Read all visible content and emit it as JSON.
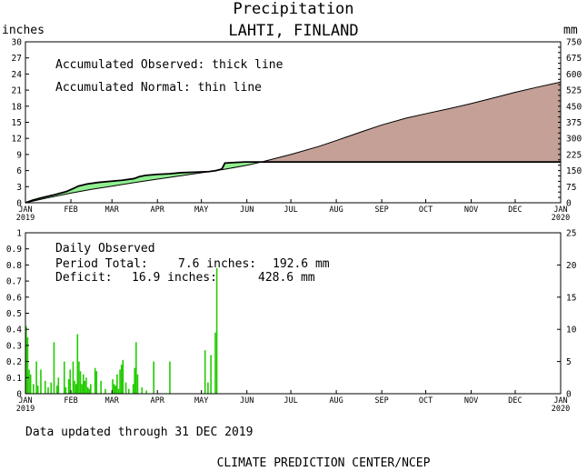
{
  "header": {
    "title": "Precipitation",
    "location": "LAHTI, FINLAND",
    "left_unit": "inches",
    "right_unit": "mm"
  },
  "top_panel": {
    "legend": [
      "Accumulated Observed: thick line",
      "Accumulated Normal: thin line"
    ]
  },
  "bottom_panel": {
    "legend_title": "Daily Observed",
    "total_label": "Period Total:",
    "total_inches": "7.6 inches:",
    "total_mm": "192.6 mm",
    "deficit_label": "Deficit:",
    "deficit_inches": "16.9 inches:",
    "deficit_mm": "428.6 mm"
  },
  "footer": {
    "updated": "Data updated through 31 DEC 2019",
    "source": "CLIMATE PREDICTION CENTER/NCEP"
  },
  "colors": {
    "surplus": "#90ee90",
    "deficit": "#c4a096",
    "bars": "#22cc00",
    "line": "#000000"
  },
  "chart_data": [
    {
      "type": "area",
      "x_unit": "day of year",
      "x_ticks": [
        {
          "label": "JAN",
          "sub": "2019",
          "day": 0
        },
        {
          "label": "FEB",
          "day": 31
        },
        {
          "label": "MAR",
          "day": 59
        },
        {
          "label": "APR",
          "day": 90
        },
        {
          "label": "MAY",
          "day": 120
        },
        {
          "label": "JUN",
          "day": 151
        },
        {
          "label": "JUL",
          "day": 181
        },
        {
          "label": "AUG",
          "day": 212
        },
        {
          "label": "SEP",
          "day": 243
        },
        {
          "label": "OCT",
          "day": 273
        },
        {
          "label": "NOV",
          "day": 304
        },
        {
          "label": "DEC",
          "day": 334
        },
        {
          "label": "JAN",
          "sub": "2020",
          "day": 365
        }
      ],
      "ylim": [
        0,
        30
      ],
      "yticks": [
        0,
        3,
        6,
        9,
        12,
        15,
        18,
        21,
        24,
        27,
        30
      ],
      "y2lim": [
        0,
        750
      ],
      "y2ticks": [
        0,
        25,
        50,
        75,
        100,
        125,
        150,
        175,
        200,
        225,
        250,
        275,
        300,
        325,
        350,
        375,
        400,
        425,
        450,
        475,
        500,
        525,
        550,
        575,
        600,
        625,
        650,
        675,
        700,
        725,
        750
      ],
      "y2tick_labels": [
        0,
        75,
        150,
        225,
        300,
        375,
        450,
        525,
        600,
        675,
        750
      ],
      "series": [
        {
          "name": "Accumulated Observed",
          "points": [
            [
              0,
              0
            ],
            [
              5,
              0.5
            ],
            [
              12,
              1.0
            ],
            [
              20,
              1.5
            ],
            [
              28,
              2.1
            ],
            [
              33,
              2.7
            ],
            [
              36,
              3.1
            ],
            [
              42,
              3.5
            ],
            [
              50,
              3.8
            ],
            [
              58,
              4.0
            ],
            [
              66,
              4.2
            ],
            [
              74,
              4.5
            ],
            [
              78,
              4.9
            ],
            [
              82,
              5.1
            ],
            [
              90,
              5.3
            ],
            [
              98,
              5.4
            ],
            [
              106,
              5.6
            ],
            [
              115,
              5.7
            ],
            [
              125,
              5.8
            ],
            [
              130,
              6.0
            ],
            [
              134,
              6.3
            ],
            [
              136,
              7.4
            ],
            [
              142,
              7.5
            ],
            [
              150,
              7.6
            ],
            [
              160,
              7.6
            ],
            [
              170,
              7.6
            ],
            [
              200,
              7.6
            ],
            [
              250,
              7.6
            ],
            [
              300,
              7.6
            ],
            [
              365,
              7.6
            ]
          ]
        },
        {
          "name": "Accumulated Normal",
          "points": [
            [
              0,
              0
            ],
            [
              15,
              0.9
            ],
            [
              31,
              1.8
            ],
            [
              45,
              2.5
            ],
            [
              59,
              3.1
            ],
            [
              75,
              3.8
            ],
            [
              90,
              4.4
            ],
            [
              105,
              5.0
            ],
            [
              120,
              5.6
            ],
            [
              135,
              6.2
            ],
            [
              151,
              7.0
            ],
            [
              161,
              7.6
            ],
            [
              181,
              9.0
            ],
            [
              200,
              10.5
            ],
            [
              212,
              11.6
            ],
            [
              230,
              13.3
            ],
            [
              243,
              14.5
            ],
            [
              260,
              15.8
            ],
            [
              273,
              16.6
            ],
            [
              290,
              17.6
            ],
            [
              304,
              18.5
            ],
            [
              320,
              19.6
            ],
            [
              334,
              20.6
            ],
            [
              350,
              21.6
            ],
            [
              365,
              22.5
            ]
          ]
        }
      ]
    },
    {
      "type": "bar",
      "x_unit": "day of year",
      "ylim": [
        0,
        1
      ],
      "yticks": [
        0,
        0.1,
        0.2,
        0.3,
        0.4,
        0.5,
        0.6,
        0.7,
        0.8,
        0.9,
        1
      ],
      "y2lim": [
        0,
        25
      ],
      "y2ticks": [
        0,
        5,
        10,
        15,
        20,
        25
      ],
      "values_inches": [
        [
          0,
          0.42
        ],
        [
          1,
          0.35
        ],
        [
          2,
          0.15
        ],
        [
          3,
          0.12
        ],
        [
          5,
          0.06
        ],
        [
          7,
          0.2
        ],
        [
          8,
          0.05
        ],
        [
          10,
          0.15
        ],
        [
          13,
          0.08
        ],
        [
          15,
          0.04
        ],
        [
          17,
          0.07
        ],
        [
          19,
          0.32
        ],
        [
          21,
          0.05
        ],
        [
          22,
          0.1
        ],
        [
          26,
          0.2
        ],
        [
          27,
          0.04
        ],
        [
          29,
          0.09
        ],
        [
          30,
          0.15
        ],
        [
          32,
          0.2
        ],
        [
          33,
          0.08
        ],
        [
          34,
          0.06
        ],
        [
          35,
          0.37
        ],
        [
          36,
          0.2
        ],
        [
          37,
          0.14
        ],
        [
          38,
          0.06
        ],
        [
          39,
          0.12
        ],
        [
          40,
          0.08
        ],
        [
          41,
          0.1
        ],
        [
          42,
          0.04
        ],
        [
          43,
          0.03
        ],
        [
          44,
          0.06
        ],
        [
          47,
          0.16
        ],
        [
          48,
          0.14
        ],
        [
          51,
          0.08
        ],
        [
          54,
          0.03
        ],
        [
          59,
          0.09
        ],
        [
          60,
          0.06
        ],
        [
          61,
          0.05
        ],
        [
          62,
          0.12
        ],
        [
          63,
          0.03
        ],
        [
          64,
          0.15
        ],
        [
          65,
          0.18
        ],
        [
          66,
          0.21
        ],
        [
          68,
          0.07
        ],
        [
          70,
          0.03
        ],
        [
          73,
          0.06
        ],
        [
          74,
          0.16
        ],
        [
          75,
          0.32
        ],
        [
          76,
          0.12
        ],
        [
          79,
          0.04
        ],
        [
          82,
          0.02
        ],
        [
          87,
          0.2
        ],
        [
          98,
          0.2
        ],
        [
          122,
          0.27
        ],
        [
          124,
          0.07
        ],
        [
          126,
          0.24
        ],
        [
          129,
          0.38
        ],
        [
          130,
          0.78
        ]
      ]
    }
  ]
}
